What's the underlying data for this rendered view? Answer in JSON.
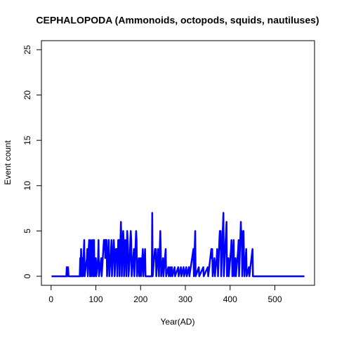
{
  "chart_data": {
    "type": "line",
    "title": "CEPHALOPODA (Ammonoids, octopods, squids, nautiluses)",
    "xlabel": "Year(AD)",
    "ylabel": "Event count",
    "xlim": [
      -21.6,
      588.6
    ],
    "ylim": [
      -1,
      26
    ],
    "xticks": [
      0,
      100,
      200,
      300,
      400,
      500
    ],
    "yticks": [
      0,
      5,
      10,
      15,
      20,
      25
    ],
    "series": [
      {
        "color": "#0000ff",
        "x": [
          1,
          34,
          35,
          36,
          38,
          39,
          64,
          65,
          66,
          67,
          68,
          69,
          70,
          71,
          74,
          75,
          80,
          81,
          82,
          84,
          85,
          86,
          87,
          88,
          89,
          90,
          92,
          93,
          94,
          96,
          97,
          100,
          101,
          105,
          106,
          107,
          112,
          113,
          118,
          119,
          120,
          121,
          122,
          123,
          124,
          125,
          128,
          129,
          130,
          133,
          134,
          135,
          136,
          139,
          140,
          141,
          142,
          145,
          146,
          147,
          148,
          150,
          151,
          152,
          153,
          155,
          156,
          157,
          158,
          160,
          161,
          162,
          163,
          165,
          166,
          167,
          168,
          170,
          171,
          172,
          173,
          176,
          177,
          178,
          179,
          180,
          185,
          186,
          190,
          191,
          192,
          196,
          197,
          200,
          201,
          205,
          206,
          210,
          211,
          225,
          226,
          227,
          232,
          233,
          234,
          235,
          238,
          239,
          240,
          241,
          244,
          245,
          246,
          250,
          251,
          256,
          257,
          262,
          263,
          266,
          267,
          270,
          271,
          276,
          277,
          284,
          285,
          290,
          291,
          296,
          297,
          302,
          303,
          308,
          309,
          318,
          319,
          322,
          323,
          330,
          331,
          340,
          341,
          350,
          351,
          358,
          359,
          360,
          361,
          365,
          366,
          370,
          371,
          372,
          373,
          376,
          377,
          378,
          379,
          380,
          385,
          386,
          392,
          393,
          396,
          397,
          402,
          403,
          404,
          405,
          408,
          409,
          412,
          413,
          418,
          419,
          420,
          424,
          425,
          426,
          427,
          430,
          431,
          432,
          436,
          437,
          442,
          443,
          450,
          451,
          566
        ],
        "values": [
          0,
          0,
          1,
          0,
          1,
          0,
          0,
          2,
          0,
          3,
          2,
          0,
          2,
          0,
          4,
          0,
          2,
          3,
          0,
          3,
          4,
          2,
          0,
          3,
          4,
          0,
          3,
          4,
          0,
          4,
          0,
          2,
          0,
          2,
          4,
          0,
          2,
          0,
          4,
          3,
          4,
          2,
          4,
          3,
          4,
          0,
          3,
          4,
          0,
          2,
          3,
          4,
          0,
          3,
          4,
          3,
          0,
          3,
          2,
          3,
          0,
          4,
          3,
          4,
          0,
          4,
          6,
          4,
          0,
          4,
          5,
          4,
          0,
          3,
          4,
          3,
          0,
          5,
          4,
          3,
          0,
          2,
          4,
          5,
          4,
          0,
          3,
          0,
          5,
          4,
          0,
          2,
          0,
          2,
          0,
          3,
          0,
          3,
          0,
          0,
          7,
          0,
          3,
          2,
          3,
          0,
          2,
          3,
          2,
          0,
          5,
          3,
          0,
          2,
          0,
          3,
          0,
          1,
          0,
          1,
          0,
          1,
          0,
          1,
          0,
          1,
          0,
          1,
          0,
          1,
          0,
          1,
          0,
          1,
          0,
          3,
          0,
          5,
          0,
          1,
          0,
          1,
          0,
          1,
          0,
          3,
          2,
          3,
          0,
          2,
          0,
          2,
          3,
          2,
          0,
          4,
          5,
          3,
          5,
          0,
          7,
          0,
          6,
          0,
          2,
          0,
          3,
          4,
          3,
          0,
          4,
          0,
          2,
          0,
          3,
          4,
          0,
          6,
          4,
          5,
          0,
          5,
          2,
          0,
          3,
          0,
          1,
          0,
          3,
          0,
          0
        ]
      }
    ]
  }
}
